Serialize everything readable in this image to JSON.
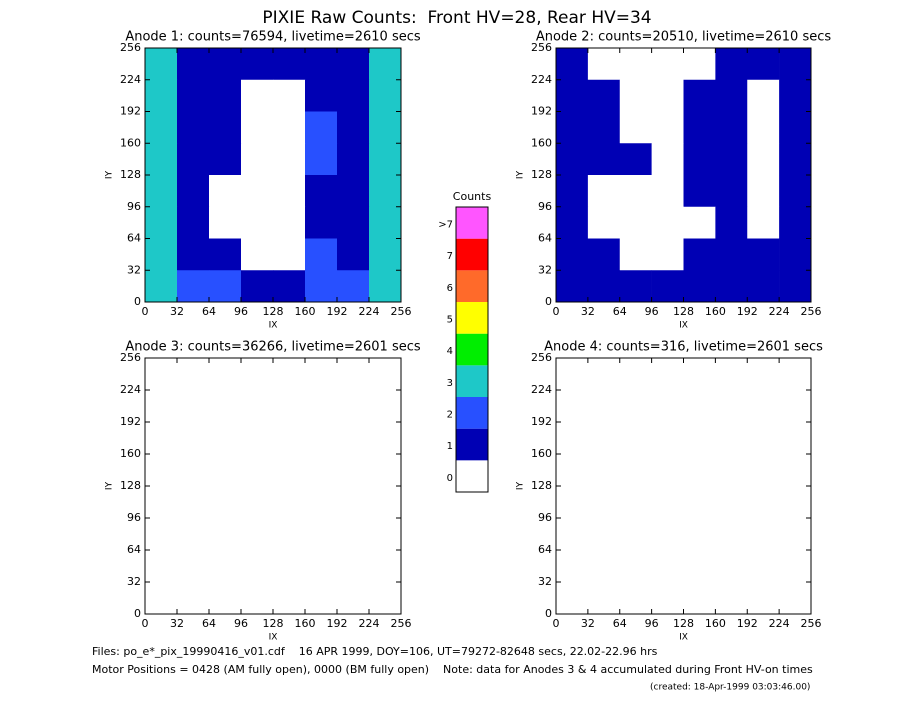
{
  "title": "PIXIE Raw Counts:  Front HV=28, Rear HV=34",
  "colorbar": {
    "title": "Counts",
    "ticks": [
      0,
      1,
      2,
      3,
      4,
      5,
      6,
      7,
      {
        "value": 8,
        "label": ">7"
      }
    ],
    "colors": [
      "#ffffff",
      "#0000b4",
      "#2850ff",
      "#1ec8c8",
      "#00ee00",
      "#ffff00",
      "#ff6a2a",
      "#ff0000",
      "#ff55ff"
    ]
  },
  "chart_data": [
    {
      "type": "heatmap",
      "title": "Anode 1: counts=76594, livetime=2610 secs",
      "xlabel": "IX",
      "ylabel": "IY",
      "xlim": [
        0,
        256
      ],
      "ylim": [
        0,
        256
      ],
      "xticks": [
        0,
        32,
        64,
        96,
        128,
        160,
        192,
        224,
        256
      ],
      "yticks": [
        0,
        32,
        64,
        96,
        128,
        160,
        192,
        224,
        256
      ],
      "z": [
        [
          3,
          1,
          1,
          1,
          1,
          1,
          1,
          3
        ],
        [
          3,
          1,
          1,
          0,
          0,
          1,
          1,
          3
        ],
        [
          3,
          1,
          1,
          0,
          0,
          2,
          1,
          3
        ],
        [
          3,
          1,
          1,
          0,
          0,
          2,
          1,
          3
        ],
        [
          3,
          1,
          0,
          0,
          0,
          1,
          1,
          3
        ],
        [
          3,
          1,
          0,
          0,
          0,
          1,
          1,
          3
        ],
        [
          3,
          1,
          1,
          0,
          0,
          2,
          1,
          3
        ],
        [
          3,
          2,
          2,
          1,
          1,
          2,
          2,
          3
        ]
      ]
    },
    {
      "type": "heatmap",
      "title": "Anode 2: counts=20510, livetime=2610 secs",
      "xlabel": "IX",
      "ylabel": "IY",
      "xlim": [
        0,
        256
      ],
      "ylim": [
        0,
        256
      ],
      "xticks": [
        0,
        32,
        64,
        96,
        128,
        160,
        192,
        224,
        256
      ],
      "yticks": [
        0,
        32,
        64,
        96,
        128,
        160,
        192,
        224,
        256
      ],
      "z": [
        [
          1,
          0,
          0,
          0,
          0,
          1,
          1,
          1
        ],
        [
          1,
          1,
          0,
          0,
          1,
          1,
          0,
          1
        ],
        [
          1,
          1,
          0,
          0,
          1,
          1,
          0,
          1
        ],
        [
          1,
          1,
          1,
          0,
          1,
          1,
          0,
          1
        ],
        [
          1,
          0,
          0,
          0,
          1,
          1,
          0,
          1
        ],
        [
          1,
          0,
          0,
          0,
          0,
          1,
          0,
          1
        ],
        [
          1,
          1,
          0,
          0,
          1,
          1,
          1,
          1
        ],
        [
          1,
          1,
          1,
          1,
          1,
          1,
          1,
          1
        ]
      ]
    },
    {
      "type": "heatmap",
      "title": "Anode 3: counts=36266, livetime=2601 secs",
      "xlabel": "IX",
      "ylabel": "IY",
      "xlim": [
        0,
        256
      ],
      "ylim": [
        0,
        256
      ],
      "xticks": [
        0,
        32,
        64,
        96,
        128,
        160,
        192,
        224,
        256
      ],
      "yticks": [
        0,
        32,
        64,
        96,
        128,
        160,
        192,
        224,
        256
      ],
      "z": [
        [
          0,
          0,
          0,
          0,
          0,
          0,
          0,
          0
        ],
        [
          0,
          0,
          0,
          0,
          0,
          0,
          0,
          0
        ],
        [
          0,
          0,
          0,
          0,
          0,
          0,
          0,
          0
        ],
        [
          0,
          0,
          0,
          0,
          0,
          0,
          0,
          0
        ],
        [
          0,
          0,
          0,
          0,
          0,
          0,
          0,
          0
        ],
        [
          0,
          0,
          0,
          0,
          0,
          0,
          0,
          0
        ],
        [
          0,
          0,
          0,
          0,
          0,
          0,
          0,
          0
        ],
        [
          0,
          0,
          0,
          0,
          0,
          0,
          0,
          0
        ]
      ]
    },
    {
      "type": "heatmap",
      "title": "Anode 4: counts=316, livetime=2601 secs",
      "xlabel": "IX",
      "ylabel": "IY",
      "xlim": [
        0,
        256
      ],
      "ylim": [
        0,
        256
      ],
      "xticks": [
        0,
        32,
        64,
        96,
        128,
        160,
        192,
        224,
        256
      ],
      "yticks": [
        0,
        32,
        64,
        96,
        128,
        160,
        192,
        224,
        256
      ],
      "z": [
        [
          0,
          0,
          0,
          0,
          0,
          0,
          0,
          0
        ],
        [
          0,
          0,
          0,
          0,
          0,
          0,
          0,
          0
        ],
        [
          0,
          0,
          0,
          0,
          0,
          0,
          0,
          0
        ],
        [
          0,
          0,
          0,
          0,
          0,
          0,
          0,
          0
        ],
        [
          0,
          0,
          0,
          0,
          0,
          0,
          0,
          0
        ],
        [
          0,
          0,
          0,
          0,
          0,
          0,
          0,
          0
        ],
        [
          0,
          0,
          0,
          0,
          0,
          0,
          0,
          0
        ],
        [
          0,
          0,
          0,
          0,
          0,
          0,
          0,
          0
        ]
      ]
    }
  ],
  "footer": [
    "Files: po_e*_pix_19990416_v01.cdf    16 APR 1999, DOY=106, UT=79272-82648 secs, 22.02-22.96 hrs",
    "Motor Positions = 0428 (AM fully open), 0000 (BM fully open)    Note: data for Anodes 3 & 4 accumulated during Front HV-on times",
    "(created: 18-Apr-1999 03:03:46.00)"
  ]
}
